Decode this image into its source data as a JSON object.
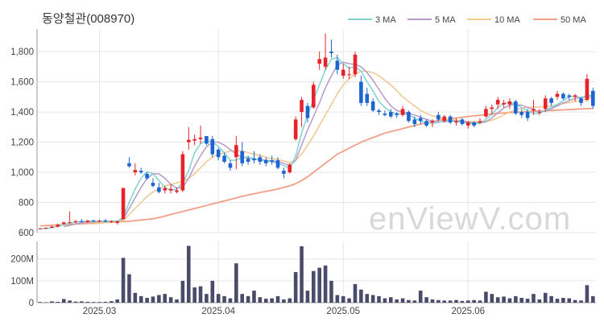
{
  "chart_data": {
    "type": "candlestick",
    "title": "동양철관(008970)",
    "watermark": "enViewV.com",
    "colors": {
      "up": "#e8222b",
      "down": "#1b64d2",
      "volume": "#4a4a6a",
      "ma3": "#7fd3cf",
      "ma5": "#b69ac9",
      "ma10": "#f2c88e",
      "ma50": "#f2a086",
      "grid": "#e6e6e6"
    },
    "legend": [
      {
        "label": "3 MA",
        "color": "#7fd3cf"
      },
      {
        "label": "5 MA",
        "color": "#b69ac9"
      },
      {
        "label": "10 MA",
        "color": "#f2c88e"
      },
      {
        "label": "50 MA",
        "color": "#f2a086"
      }
    ],
    "price_axis": {
      "ylim": [
        600,
        1950
      ],
      "ticks": [
        600,
        800,
        1000,
        1200,
        1400,
        1600,
        1800
      ],
      "tick_labels": [
        "600",
        "800",
        "1,000",
        "1,200",
        "1,400",
        "1,600",
        "1,800"
      ]
    },
    "volume_axis": {
      "ylim": [
        0,
        280
      ],
      "ticks": [
        0,
        100,
        200
      ],
      "tick_labels": [
        "0",
        "100M",
        "200M"
      ]
    },
    "x_ticks": [
      {
        "index": 10,
        "label": "2025.03"
      },
      {
        "index": 30,
        "label": "2025.04"
      },
      {
        "index": 51,
        "label": "2025.05"
      },
      {
        "index": 72,
        "label": "2025.06"
      }
    ],
    "candles": [
      [
        625,
        630,
        620,
        628,
        3
      ],
      [
        628,
        635,
        624,
        632,
        2
      ],
      [
        632,
        645,
        630,
        640,
        6
      ],
      [
        640,
        660,
        635,
        652,
        4
      ],
      [
        658,
        672,
        650,
        668,
        17
      ],
      [
        668,
        740,
        660,
        670,
        10
      ],
      [
        670,
        685,
        662,
        676,
        5
      ],
      [
        676,
        690,
        668,
        672,
        6
      ],
      [
        672,
        684,
        664,
        680,
        4
      ],
      [
        680,
        688,
        672,
        676,
        3
      ],
      [
        676,
        686,
        668,
        680,
        3
      ],
      [
        680,
        690,
        670,
        672,
        4
      ],
      [
        670,
        680,
        664,
        676,
        7
      ],
      [
        665,
        680,
        655,
        675,
        15
      ],
      [
        690,
        900,
        685,
        895,
        205
      ],
      [
        1060,
        1100,
        1030,
        1040,
        130
      ],
      [
        1000,
        1060,
        980,
        1015,
        45
      ],
      [
        1010,
        1030,
        990,
        1000,
        30
      ],
      [
        990,
        1000,
        950,
        960,
        22
      ],
      [
        930,
        960,
        900,
        910,
        28
      ],
      [
        900,
        930,
        860,
        870,
        35
      ],
      [
        880,
        910,
        860,
        895,
        40
      ],
      [
        880,
        920,
        860,
        890,
        25
      ],
      [
        870,
        900,
        860,
        880,
        15
      ],
      [
        880,
        1140,
        870,
        1120,
        100
      ],
      [
        1200,
        1300,
        1150,
        1215,
        260
      ],
      [
        1210,
        1250,
        1180,
        1220,
        70
      ],
      [
        1220,
        1310,
        1190,
        1230,
        75
      ],
      [
        1240,
        1240,
        1180,
        1190,
        40
      ],
      [
        1220,
        1240,
        1100,
        1120,
        100
      ],
      [
        1150,
        1160,
        1080,
        1100,
        40
      ],
      [
        1110,
        1130,
        1060,
        1070,
        30
      ],
      [
        1060,
        1080,
        1010,
        1030,
        20
      ],
      [
        1100,
        1240,
        1020,
        1180,
        180
      ],
      [
        1140,
        1200,
        1040,
        1060,
        40
      ],
      [
        1090,
        1110,
        1050,
        1070,
        30
      ],
      [
        1090,
        1140,
        1060,
        1080,
        55
      ],
      [
        1100,
        1120,
        1050,
        1070,
        25
      ],
      [
        1080,
        1100,
        1040,
        1060,
        18
      ],
      [
        1080,
        1110,
        1050,
        1070,
        20
      ],
      [
        1080,
        1100,
        1020,
        1030,
        30
      ],
      [
        1010,
        1030,
        960,
        990,
        15
      ],
      [
        1000,
        1060,
        990,
        1050,
        20
      ],
      [
        1220,
        1370,
        1210,
        1350,
        140
      ],
      [
        1400,
        1500,
        1300,
        1480,
        258
      ],
      [
        1440,
        1460,
        1330,
        1360,
        55
      ],
      [
        1430,
        1600,
        1420,
        1580,
        145
      ],
      [
        1720,
        1800,
        1680,
        1750,
        160
      ],
      [
        1700,
        1920,
        1680,
        1760,
        170
      ],
      [
        1800,
        1880,
        1760,
        1790,
        100
      ],
      [
        1740,
        1780,
        1650,
        1680,
        35
      ],
      [
        1640,
        1720,
        1620,
        1680,
        30
      ],
      [
        1650,
        1700,
        1620,
        1650,
        20
      ],
      [
        1650,
        1800,
        1630,
        1780,
        85
      ],
      [
        1600,
        1640,
        1440,
        1460,
        60
      ],
      [
        1520,
        1560,
        1440,
        1460,
        40
      ],
      [
        1470,
        1490,
        1400,
        1410,
        35
      ],
      [
        1410,
        1420,
        1380,
        1400,
        30
      ],
      [
        1390,
        1410,
        1370,
        1380,
        20
      ],
      [
        1400,
        1420,
        1360,
        1370,
        25
      ],
      [
        1390,
        1400,
        1360,
        1380,
        15
      ],
      [
        1380,
        1440,
        1370,
        1420,
        20
      ],
      [
        1400,
        1410,
        1330,
        1340,
        12
      ],
      [
        1350,
        1370,
        1300,
        1320,
        10
      ],
      [
        1360,
        1380,
        1320,
        1340,
        55
      ],
      [
        1340,
        1350,
        1300,
        1310,
        25
      ],
      [
        1330,
        1350,
        1300,
        1340,
        15
      ],
      [
        1380,
        1400,
        1340,
        1350,
        12
      ],
      [
        1340,
        1380,
        1330,
        1370,
        10
      ],
      [
        1370,
        1380,
        1320,
        1330,
        10
      ],
      [
        1330,
        1360,
        1310,
        1340,
        12
      ],
      [
        1350,
        1360,
        1310,
        1320,
        8
      ],
      [
        1310,
        1340,
        1290,
        1330,
        10
      ],
      [
        1330,
        1340,
        1300,
        1310,
        12
      ],
      [
        1330,
        1360,
        1320,
        1340,
        10
      ],
      [
        1370,
        1440,
        1360,
        1420,
        50
      ],
      [
        1420,
        1450,
        1380,
        1430,
        40
      ],
      [
        1450,
        1500,
        1420,
        1480,
        25
      ],
      [
        1450,
        1480,
        1430,
        1460,
        28
      ],
      [
        1450,
        1490,
        1420,
        1470,
        20
      ],
      [
        1470,
        1480,
        1380,
        1390,
        30
      ],
      [
        1400,
        1420,
        1360,
        1380,
        22
      ],
      [
        1400,
        1420,
        1340,
        1360,
        18
      ],
      [
        1410,
        1480,
        1380,
        1420,
        40
      ],
      [
        1400,
        1420,
        1380,
        1400,
        15
      ],
      [
        1420,
        1510,
        1400,
        1490,
        45
      ],
      [
        1490,
        1500,
        1440,
        1460,
        30
      ],
      [
        1500,
        1540,
        1480,
        1520,
        18
      ],
      [
        1520,
        1530,
        1480,
        1490,
        22
      ],
      [
        1510,
        1520,
        1480,
        1500,
        20
      ],
      [
        1500,
        1520,
        1470,
        1510,
        12
      ],
      [
        1490,
        1500,
        1440,
        1460,
        10
      ],
      [
        1480,
        1650,
        1470,
        1620,
        80
      ],
      [
        1540,
        1560,
        1420,
        1440,
        30
      ]
    ],
    "ma3": [
      625,
      628,
      633,
      641,
      653,
      663,
      671,
      673,
      676,
      676,
      676,
      677,
      676,
      674,
      702,
      800,
      890,
      960,
      1005,
      990,
      945,
      900,
      880,
      890,
      930,
      1010,
      1130,
      1190,
      1210,
      1200,
      1170,
      1130,
      1080,
      1080,
      1100,
      1100,
      1090,
      1080,
      1075,
      1070,
      1060,
      1045,
      1025,
      1110,
      1260,
      1380,
      1480,
      1580,
      1680,
      1750,
      1760,
      1720,
      1690,
      1700,
      1670,
      1600,
      1540,
      1470,
      1430,
      1400,
      1385,
      1390,
      1380,
      1360,
      1340,
      1330,
      1323,
      1330,
      1340,
      1345,
      1340,
      1330,
      1325,
      1322,
      1325,
      1350,
      1385,
      1430,
      1455,
      1465,
      1450,
      1430,
      1405,
      1390,
      1390,
      1410,
      1430,
      1450,
      1475,
      1500,
      1505,
      1495,
      1510,
      1510
    ],
    "ma5": [
      null,
      null,
      null,
      null,
      640,
      648,
      658,
      666,
      670,
      672,
      674,
      676,
      677,
      675,
      690,
      760,
      830,
      900,
      960,
      990,
      990,
      960,
      920,
      895,
      900,
      960,
      1040,
      1110,
      1170,
      1200,
      1200,
      1180,
      1150,
      1120,
      1100,
      1095,
      1090,
      1085,
      1080,
      1075,
      1070,
      1060,
      1045,
      1080,
      1180,
      1280,
      1370,
      1460,
      1560,
      1640,
      1710,
      1730,
      1720,
      1715,
      1700,
      1660,
      1610,
      1550,
      1490,
      1440,
      1410,
      1400,
      1390,
      1380,
      1365,
      1350,
      1340,
      1335,
      1335,
      1340,
      1340,
      1338,
      1333,
      1328,
      1326,
      1335,
      1360,
      1395,
      1425,
      1445,
      1450,
      1445,
      1430,
      1415,
      1400,
      1405,
      1420,
      1440,
      1460,
      1475,
      1490,
      1495,
      1500,
      1505
    ],
    "ma10": [
      null,
      null,
      null,
      null,
      null,
      null,
      null,
      null,
      null,
      658,
      662,
      666,
      669,
      671,
      680,
      720,
      760,
      800,
      840,
      870,
      890,
      910,
      920,
      930,
      940,
      960,
      990,
      1030,
      1070,
      1100,
      1120,
      1130,
      1140,
      1145,
      1140,
      1130,
      1120,
      1110,
      1100,
      1090,
      1085,
      1075,
      1065,
      1080,
      1120,
      1180,
      1240,
      1310,
      1380,
      1450,
      1520,
      1580,
      1620,
      1650,
      1670,
      1670,
      1660,
      1640,
      1610,
      1580,
      1540,
      1500,
      1470,
      1440,
      1410,
      1390,
      1375,
      1365,
      1355,
      1350,
      1345,
      1340,
      1337,
      1335,
      1335,
      1338,
      1345,
      1360,
      1380,
      1400,
      1415,
      1425,
      1430,
      1432,
      1433,
      1435,
      1440,
      1448,
      1455,
      1462,
      1470,
      1478,
      1485,
      1492
    ],
    "ma50": [
      645,
      647,
      649,
      651,
      653,
      655,
      657,
      659,
      661,
      663,
      665,
      667,
      669,
      671,
      673,
      676,
      680,
      684,
      688,
      692,
      700,
      710,
      720,
      730,
      740,
      750,
      760,
      770,
      780,
      790,
      800,
      810,
      820,
      830,
      840,
      850,
      858,
      866,
      874,
      882,
      890,
      900,
      910,
      925,
      945,
      970,
      1000,
      1030,
      1060,
      1090,
      1120,
      1140,
      1160,
      1180,
      1200,
      1215,
      1230,
      1245,
      1260,
      1270,
      1280,
      1290,
      1300,
      1310,
      1320,
      1328,
      1336,
      1344,
      1350,
      1356,
      1360,
      1365,
      1370,
      1374,
      1378,
      1382,
      1386,
      1390,
      1393,
      1396,
      1398,
      1400,
      1402,
      1404,
      1406,
      1408,
      1410,
      1412,
      1414,
      1416,
      1418,
      1420,
      1422,
      1424
    ]
  }
}
